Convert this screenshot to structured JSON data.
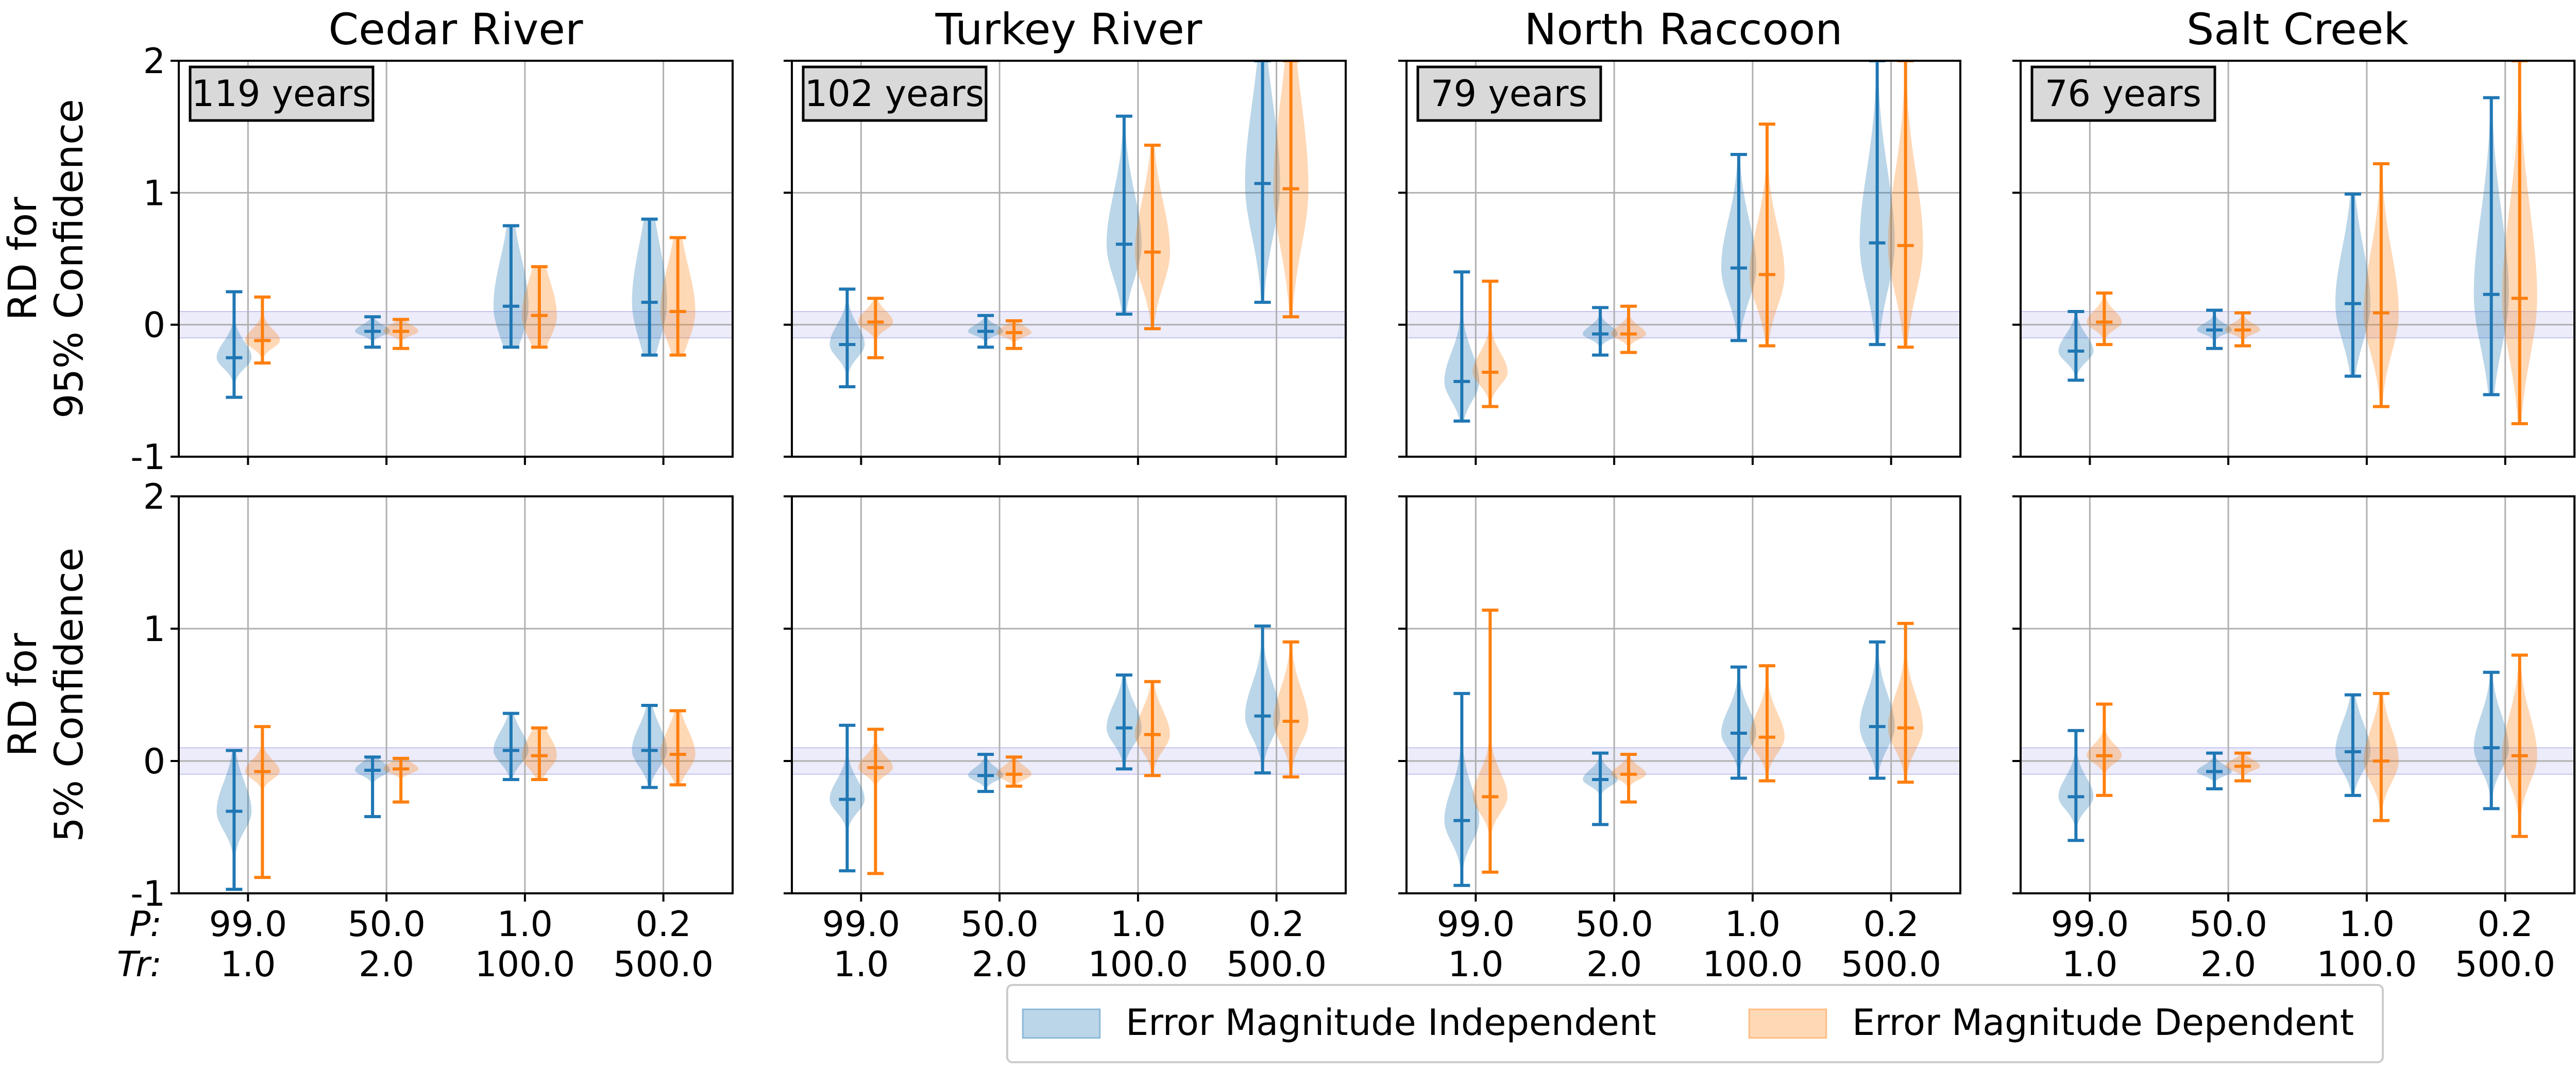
{
  "figure": {
    "row_labels": [
      [
        "RD for",
        "95% Confidence"
      ],
      [
        "RD for",
        "5% Confidence"
      ]
    ],
    "tick_row_labels": {
      "p": "P:",
      "tr": "Tr:"
    },
    "legend": [
      {
        "label": "Error Magnitude Independent",
        "color": "#1f77b4"
      },
      {
        "label": "Error Magnitude Dependent",
        "color": "#ff7f0e"
      }
    ],
    "band_color": "#6b6bd6"
  },
  "chart_data": {
    "type": "violin",
    "grid": true,
    "ylim": [
      -1,
      2
    ],
    "yticks": [
      -1,
      0,
      1,
      2
    ],
    "band": [
      -0.1,
      0.1
    ],
    "categories_p": [
      "99.0",
      "50.0",
      "1.0",
      "0.2"
    ],
    "categories_tr": [
      "1.0",
      "2.0",
      "100.0",
      "500.0"
    ],
    "series_names": [
      "Error Magnitude Independent",
      "Error Magnitude Dependent"
    ],
    "panels": [
      {
        "title": "Cedar River",
        "badge": "119 years",
        "row": 0,
        "col": 0,
        "series": [
          {
            "name": "Error Magnitude Independent",
            "stats": [
              [
                -0.55,
                -0.25,
                0.25
              ],
              [
                -0.17,
                -0.05,
                0.06
              ],
              [
                -0.17,
                0.14,
                0.75
              ],
              [
                -0.23,
                0.17,
                0.8
              ]
            ],
            "spread": [
              0.1,
              0.04,
              0.3,
              0.35
            ]
          },
          {
            "name": "Error Magnitude Dependent",
            "stats": [
              [
                -0.29,
                -0.12,
                0.21
              ],
              [
                -0.18,
                -0.05,
                0.04
              ],
              [
                -0.17,
                0.07,
                0.44
              ],
              [
                -0.23,
                0.1,
                0.66
              ]
            ],
            "spread": [
              0.07,
              0.04,
              0.22,
              0.28
            ]
          }
        ]
      },
      {
        "title": "Turkey River",
        "badge": "102 years",
        "row": 0,
        "col": 1,
        "series": [
          {
            "name": "Error Magnitude Independent",
            "stats": [
              [
                -0.47,
                -0.15,
                0.27
              ],
              [
                -0.17,
                -0.05,
                0.07
              ],
              [
                0.08,
                0.61,
                1.58
              ],
              [
                0.17,
                1.07,
                2.0
              ]
            ],
            "spread": [
              0.12,
              0.04,
              0.32,
              0.5
            ]
          },
          {
            "name": "Error Magnitude Dependent",
            "stats": [
              [
                -0.25,
                0.02,
                0.2
              ],
              [
                -0.18,
                -0.06,
                0.03
              ],
              [
                -0.03,
                0.55,
                1.36
              ],
              [
                0.06,
                1.03,
                2.0
              ]
            ],
            "spread": [
              0.07,
              0.04,
              0.32,
              0.55
            ]
          }
        ]
      },
      {
        "title": "North Raccoon",
        "badge": "79 years",
        "row": 0,
        "col": 2,
        "series": [
          {
            "name": "Error Magnitude Independent",
            "stats": [
              [
                -0.73,
                -0.43,
                0.4
              ],
              [
                -0.23,
                -0.07,
                0.13
              ],
              [
                -0.12,
                0.43,
                1.29
              ],
              [
                -0.15,
                0.62,
                2.0
              ]
            ],
            "spread": [
              0.18,
              0.05,
              0.3,
              0.45
            ]
          },
          {
            "name": "Error Magnitude Dependent",
            "stats": [
              [
                -0.62,
                -0.36,
                0.33
              ],
              [
                -0.21,
                -0.07,
                0.14
              ],
              [
                -0.16,
                0.38,
                1.52
              ],
              [
                -0.17,
                0.6,
                2.0
              ]
            ],
            "spread": [
              0.12,
              0.05,
              0.3,
              0.45
            ]
          }
        ]
      },
      {
        "title": "Salt Creek",
        "badge": "76 years",
        "row": 0,
        "col": 3,
        "series": [
          {
            "name": "Error Magnitude Independent",
            "stats": [
              [
                -0.42,
                -0.2,
                0.1
              ],
              [
                -0.18,
                -0.04,
                0.11
              ],
              [
                -0.39,
                0.16,
                0.99
              ],
              [
                -0.53,
                0.23,
                1.72
              ]
            ],
            "spread": [
              0.1,
              0.04,
              0.35,
              0.5
            ]
          },
          {
            "name": "Error Magnitude Dependent",
            "stats": [
              [
                -0.15,
                0.02,
                0.24
              ],
              [
                -0.16,
                -0.04,
                0.09
              ],
              [
                -0.62,
                0.09,
                1.22
              ],
              [
                -0.75,
                0.2,
                2.0
              ]
            ],
            "spread": [
              0.07,
              0.04,
              0.38,
              0.55
            ]
          }
        ]
      },
      {
        "title": "",
        "badge": "",
        "row": 1,
        "col": 0,
        "series": [
          {
            "name": "Error Magnitude Independent",
            "stats": [
              [
                -0.97,
                -0.38,
                0.08
              ],
              [
                -0.42,
                -0.07,
                0.03
              ],
              [
                -0.14,
                0.08,
                0.36
              ],
              [
                -0.2,
                0.08,
                0.42
              ]
            ],
            "spread": [
              0.18,
              0.05,
              0.12,
              0.15
            ]
          },
          {
            "name": "Error Magnitude Dependent",
            "stats": [
              [
                -0.88,
                -0.08,
                0.26
              ],
              [
                -0.31,
                -0.06,
                0.02
              ],
              [
                -0.14,
                0.04,
                0.25
              ],
              [
                -0.18,
                0.05,
                0.38
              ]
            ],
            "spread": [
              0.07,
              0.04,
              0.12,
              0.15
            ]
          }
        ]
      },
      {
        "title": "",
        "badge": "",
        "row": 1,
        "col": 1,
        "series": [
          {
            "name": "Error Magnitude Independent",
            "stats": [
              [
                -0.83,
                -0.29,
                0.27
              ],
              [
                -0.23,
                -0.11,
                0.05
              ],
              [
                -0.06,
                0.25,
                0.65
              ],
              [
                -0.09,
                0.34,
                1.02
              ]
            ],
            "spread": [
              0.12,
              0.05,
              0.15,
              0.2
            ]
          },
          {
            "name": "Error Magnitude Dependent",
            "stats": [
              [
                -0.85,
                -0.05,
                0.24
              ],
              [
                -0.19,
                -0.1,
                0.03
              ],
              [
                -0.11,
                0.2,
                0.6
              ],
              [
                -0.12,
                0.3,
                0.9
              ]
            ],
            "spread": [
              0.07,
              0.05,
              0.15,
              0.2
            ]
          }
        ]
      },
      {
        "title": "",
        "badge": "",
        "row": 1,
        "col": 2,
        "series": [
          {
            "name": "Error Magnitude Independent",
            "stats": [
              [
                -0.94,
                -0.45,
                0.51
              ],
              [
                -0.48,
                -0.14,
                0.06
              ],
              [
                -0.13,
                0.21,
                0.71
              ],
              [
                -0.13,
                0.26,
                0.9
              ]
            ],
            "spread": [
              0.2,
              0.06,
              0.15,
              0.2
            ]
          },
          {
            "name": "Error Magnitude Dependent",
            "stats": [
              [
                -0.84,
                -0.27,
                1.14
              ],
              [
                -0.31,
                -0.1,
                0.05
              ],
              [
                -0.15,
                0.18,
                0.72
              ],
              [
                -0.16,
                0.25,
                1.04
              ]
            ],
            "spread": [
              0.15,
              0.05,
              0.15,
              0.2
            ]
          }
        ]
      },
      {
        "title": "",
        "badge": "",
        "row": 1,
        "col": 3,
        "series": [
          {
            "name": "Error Magnitude Independent",
            "stats": [
              [
                -0.6,
                -0.27,
                0.23
              ],
              [
                -0.21,
                -0.08,
                0.06
              ],
              [
                -0.26,
                0.07,
                0.5
              ],
              [
                -0.36,
                0.1,
                0.67
              ]
            ],
            "spread": [
              0.12,
              0.04,
              0.18,
              0.2
            ]
          },
          {
            "name": "Error Magnitude Dependent",
            "stats": [
              [
                -0.26,
                0.04,
                0.43
              ],
              [
                -0.15,
                -0.04,
                0.06
              ],
              [
                -0.45,
                0.0,
                0.51
              ],
              [
                -0.57,
                0.04,
                0.8
              ]
            ],
            "spread": [
              0.07,
              0.04,
              0.2,
              0.25
            ]
          }
        ]
      }
    ]
  }
}
